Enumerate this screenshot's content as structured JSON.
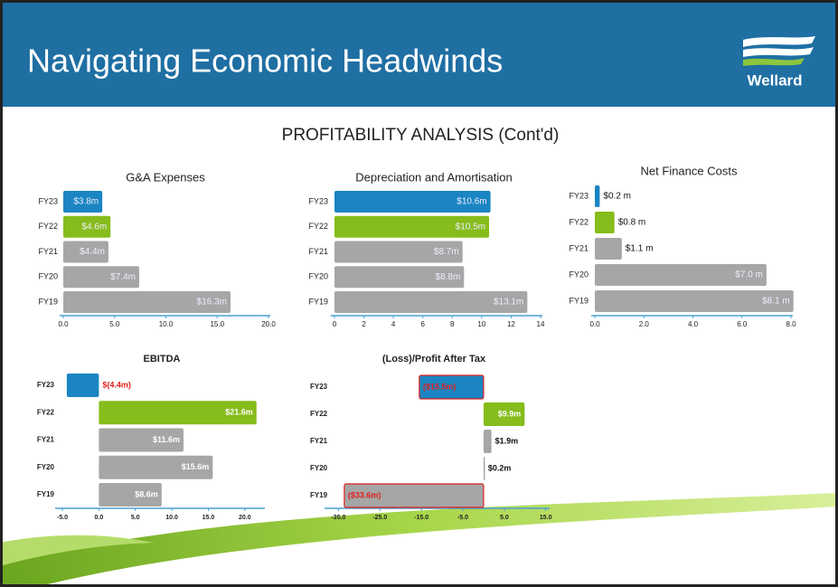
{
  "header": {
    "title": "Navigating Economic Headwinds",
    "logo": "Wellard"
  },
  "subtitle": "PROFITABILITY ANALYSIS (Cont'd)",
  "chart_data": [
    {
      "type": "bar",
      "orientation": "horizontal",
      "title": "G&A Expenses",
      "categories": [
        "FY23",
        "FY22",
        "FY21",
        "FY20",
        "FY19"
      ],
      "values": [
        3.8,
        4.6,
        4.4,
        7.4,
        16.3
      ],
      "value_labels": [
        "$3.8m",
        "$4.6m",
        "$4.4m",
        "$7.4m",
        "$16.3m"
      ],
      "colors": [
        "#1a85c2",
        "#86bc1b",
        "#a6a6a6",
        "#a6a6a6",
        "#a6a6a6"
      ],
      "xlim": [
        0,
        20
      ],
      "xticks": [
        {
          "value": 0,
          "label": "0.0"
        },
        {
          "value": 5,
          "label": "5.0"
        },
        {
          "value": 10,
          "label": "10.0"
        },
        {
          "value": 15,
          "label": "15.0"
        },
        {
          "value": 20,
          "label": "20.0"
        }
      ],
      "bold_labels": false
    },
    {
      "type": "bar",
      "orientation": "horizontal",
      "title": "Depreciation and Amortisation",
      "categories": [
        "FY23",
        "FY22",
        "FY21",
        "FY20",
        "FY19"
      ],
      "values": [
        10.6,
        10.5,
        8.7,
        8.8,
        13.1
      ],
      "value_labels": [
        "$10.6m",
        "$10.5m",
        "$8.7m",
        "$8.8m",
        "$13.1m"
      ],
      "colors": [
        "#1a85c2",
        "#86bc1b",
        "#a6a6a6",
        "#a6a6a6",
        "#a6a6a6"
      ],
      "xlim": [
        0,
        14
      ],
      "xticks": [
        0,
        2,
        4,
        6,
        8,
        10,
        12,
        14
      ],
      "bold_labels": false
    },
    {
      "type": "bar",
      "orientation": "horizontal",
      "title": "Net Finance Costs",
      "categories": [
        "FY23",
        "FY22",
        "FY21",
        "FY20",
        "FY19"
      ],
      "values": [
        0.2,
        0.8,
        1.1,
        7.0,
        8.1
      ],
      "value_labels": [
        "$0.2 m",
        "$0.8 m",
        "$1.1 m",
        "$7.0 m",
        "$8.1 m"
      ],
      "colors": [
        "#1a85c2",
        "#86bc1b",
        "#a6a6a6",
        "#a6a6a6",
        "#a6a6a6"
      ],
      "xlim": [
        0,
        8
      ],
      "xticks": [
        {
          "value": 0,
          "label": "0.0"
        },
        {
          "value": 2,
          "label": "2.0"
        },
        {
          "value": 4,
          "label": "4.0"
        },
        {
          "value": 6,
          "label": "6.0"
        },
        {
          "value": 8,
          "label": "8.0"
        }
      ],
      "bold_labels": false
    },
    {
      "type": "bar",
      "orientation": "horizontal",
      "title": "EBITDA",
      "categories": [
        "FY23",
        "FY22",
        "FY21",
        "FY20",
        "FY19"
      ],
      "values": [
        -4.4,
        21.6,
        11.6,
        15.6,
        8.6
      ],
      "value_labels": [
        "$(4.4m)",
        "$21.6m",
        "$11.6m",
        "$15.6m",
        "$8.6m"
      ],
      "colors": [
        "#1a85c2",
        "#86bc1b",
        "#a6a6a6",
        "#a6a6a6",
        "#a6a6a6"
      ],
      "xlim": [
        -5.5,
        22.5
      ],
      "xticks": [
        {
          "value": -5,
          "label": "-5.0"
        },
        {
          "value": 0,
          "label": "0.0"
        },
        {
          "value": 5,
          "label": "5.0"
        },
        {
          "value": 10,
          "label": "10.0"
        },
        {
          "value": 15,
          "label": "15.0"
        },
        {
          "value": 20,
          "label": "20.0"
        }
      ],
      "bold_labels": true,
      "negative_color": "#e0201c",
      "negative_stroke": false
    },
    {
      "type": "bar",
      "orientation": "horizontal",
      "title": "(Loss)/Profit After Tax",
      "categories": [
        "FY23",
        "FY22",
        "FY21",
        "FY20",
        "FY19"
      ],
      "values": [
        -15.5,
        9.9,
        1.9,
        0.2,
        -33.6
      ],
      "value_labels": [
        "($15.5m)",
        "$9.9m",
        "$1.9m",
        "$0.2m",
        "($33.6m)"
      ],
      "colors": [
        "#1a85c2",
        "#86bc1b",
        "#a6a6a6",
        "#a6a6a6",
        "#a6a6a6"
      ],
      "xlim": [
        -37.5,
        15.5
      ],
      "xticks": [
        {
          "value": -35,
          "label": "-35.0"
        },
        {
          "value": -25,
          "label": "-25.0"
        },
        {
          "value": -15,
          "label": "-15.0"
        },
        {
          "value": -5,
          "label": "-5.0"
        },
        {
          "value": 5,
          "label": "5.0"
        },
        {
          "value": 15,
          "label": "15.0"
        }
      ],
      "bold_labels": true,
      "negative_color": "#e0201c",
      "negative_stroke": true
    }
  ]
}
